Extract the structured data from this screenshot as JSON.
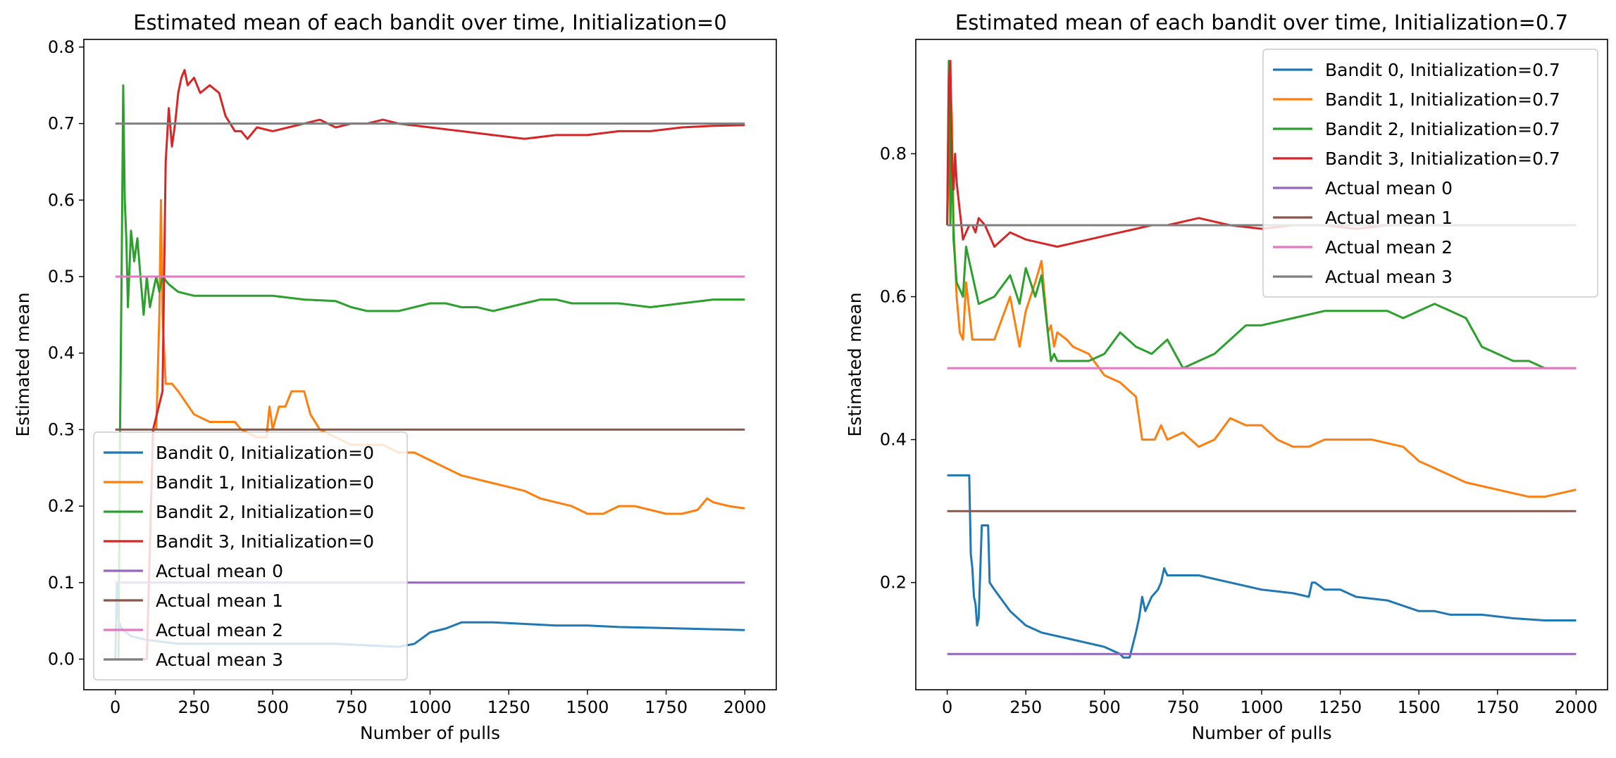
{
  "chart_data": [
    {
      "type": "line",
      "title": "Estimated mean of each bandit over time, Initialization=0",
      "xlabel": "Number of pulls",
      "ylabel": "Estimated mean",
      "xlim": [
        -100,
        2100
      ],
      "ylim": [
        -0.04,
        0.81
      ],
      "xticks": [
        0,
        250,
        500,
        750,
        1000,
        1250,
        1500,
        1750,
        2000
      ],
      "xtick_labels": [
        "0",
        "250",
        "500",
        "750",
        "1000",
        "1250",
        "1500",
        "1750",
        "2000"
      ],
      "yticks": [
        0.0,
        0.1,
        0.2,
        0.3,
        0.4,
        0.5,
        0.6,
        0.7,
        0.8
      ],
      "ytick_labels": [
        "0.0",
        "0.1",
        "0.2",
        "0.3",
        "0.4",
        "0.5",
        "0.6",
        "0.7",
        "0.8"
      ],
      "grid": false,
      "legend_position": "lower-left",
      "series": [
        {
          "name": "Bandit 0, Initialization=0",
          "color": "#1f77b4",
          "x": [
            0,
            5,
            10,
            20,
            50,
            100,
            200,
            300,
            500,
            700,
            800,
            900,
            950,
            1000,
            1050,
            1100,
            1200,
            1300,
            1400,
            1500,
            1600,
            1700,
            1800,
            1900,
            2000
          ],
          "y": [
            0.0,
            0.1,
            0.05,
            0.04,
            0.03,
            0.025,
            0.02,
            0.02,
            0.02,
            0.02,
            0.018,
            0.016,
            0.02,
            0.035,
            0.04,
            0.048,
            0.048,
            0.046,
            0.044,
            0.044,
            0.042,
            0.041,
            0.04,
            0.039,
            0.038
          ]
        },
        {
          "name": "Bandit 1, Initialization=0",
          "color": "#ff7f0e",
          "x": [
            0,
            100,
            120,
            130,
            140,
            145,
            150,
            160,
            180,
            200,
            250,
            300,
            380,
            400,
            450,
            480,
            490,
            500,
            520,
            540,
            560,
            580,
            600,
            620,
            650,
            700,
            750,
            800,
            850,
            900,
            950,
            1000,
            1050,
            1100,
            1150,
            1200,
            1250,
            1300,
            1350,
            1400,
            1450,
            1500,
            1550,
            1600,
            1650,
            1700,
            1750,
            1800,
            1850,
            1880,
            1900,
            1950,
            2000
          ],
          "y": [
            0.0,
            0.0,
            0.3,
            0.3,
            0.45,
            0.6,
            0.45,
            0.36,
            0.36,
            0.35,
            0.32,
            0.31,
            0.31,
            0.3,
            0.29,
            0.29,
            0.33,
            0.3,
            0.33,
            0.33,
            0.35,
            0.35,
            0.35,
            0.32,
            0.3,
            0.29,
            0.28,
            0.28,
            0.28,
            0.27,
            0.27,
            0.26,
            0.25,
            0.24,
            0.235,
            0.23,
            0.225,
            0.22,
            0.21,
            0.205,
            0.2,
            0.19,
            0.19,
            0.2,
            0.2,
            0.195,
            0.19,
            0.19,
            0.195,
            0.21,
            0.205,
            0.2,
            0.197
          ]
        },
        {
          "name": "Bandit 2, Initialization=0",
          "color": "#2ca02c",
          "x": [
            0,
            10,
            15,
            20,
            25,
            30,
            35,
            40,
            50,
            60,
            70,
            80,
            90,
            100,
            110,
            120,
            130,
            140,
            150,
            170,
            200,
            250,
            300,
            400,
            500,
            600,
            700,
            750,
            800,
            900,
            1000,
            1050,
            1100,
            1150,
            1200,
            1250,
            1300,
            1350,
            1400,
            1450,
            1500,
            1600,
            1700,
            1800,
            1900,
            1950,
            2000
          ],
          "y": [
            0.0,
            0.0,
            0.3,
            0.5,
            0.75,
            0.6,
            0.55,
            0.46,
            0.56,
            0.52,
            0.55,
            0.5,
            0.45,
            0.5,
            0.46,
            0.48,
            0.5,
            0.48,
            0.5,
            0.49,
            0.48,
            0.475,
            0.475,
            0.475,
            0.475,
            0.47,
            0.468,
            0.46,
            0.455,
            0.455,
            0.465,
            0.465,
            0.46,
            0.46,
            0.455,
            0.46,
            0.465,
            0.47,
            0.47,
            0.465,
            0.465,
            0.465,
            0.46,
            0.465,
            0.47,
            0.47,
            0.47
          ]
        },
        {
          "name": "Bandit 3, Initialization=0",
          "color": "#d62728",
          "x": [
            0,
            100,
            120,
            150,
            160,
            170,
            180,
            190,
            200,
            210,
            220,
            230,
            250,
            270,
            300,
            330,
            350,
            380,
            400,
            420,
            450,
            500,
            550,
            600,
            650,
            700,
            750,
            800,
            850,
            900,
            1000,
            1100,
            1200,
            1300,
            1400,
            1500,
            1600,
            1700,
            1800,
            1900,
            2000
          ],
          "y": [
            0.0,
            0.0,
            0.3,
            0.35,
            0.65,
            0.72,
            0.67,
            0.7,
            0.74,
            0.76,
            0.77,
            0.75,
            0.76,
            0.74,
            0.75,
            0.74,
            0.71,
            0.69,
            0.69,
            0.68,
            0.695,
            0.69,
            0.695,
            0.7,
            0.705,
            0.695,
            0.7,
            0.7,
            0.705,
            0.7,
            0.695,
            0.69,
            0.685,
            0.68,
            0.685,
            0.685,
            0.69,
            0.69,
            0.695,
            0.697,
            0.698
          ]
        },
        {
          "name": "Actual mean 0",
          "color": "#9467bd",
          "x": [
            0,
            2000
          ],
          "y": [
            0.1,
            0.1
          ]
        },
        {
          "name": "Actual mean 1",
          "color": "#8c564b",
          "x": [
            0,
            2000
          ],
          "y": [
            0.3,
            0.3
          ]
        },
        {
          "name": "Actual mean 2",
          "color": "#e377c2",
          "x": [
            0,
            2000
          ],
          "y": [
            0.5,
            0.5
          ]
        },
        {
          "name": "Actual mean 3",
          "color": "#7f7f7f",
          "x": [
            0,
            2000
          ],
          "y": [
            0.7,
            0.7
          ]
        }
      ]
    },
    {
      "type": "line",
      "title": "Estimated mean of each bandit over time, Initialization=0.7",
      "xlabel": "Number of pulls",
      "ylabel": "Estimated mean",
      "xlim": [
        -100,
        2100
      ],
      "ylim": [
        0.05,
        0.96
      ],
      "xticks": [
        0,
        250,
        500,
        750,
        1000,
        1250,
        1500,
        1750,
        2000
      ],
      "xtick_labels": [
        "0",
        "250",
        "500",
        "750",
        "1000",
        "1250",
        "1500",
        "1750",
        "2000"
      ],
      "yticks": [
        0.2,
        0.4,
        0.6,
        0.8
      ],
      "ytick_labels": [
        "0.2",
        "0.4",
        "0.6",
        "0.8"
      ],
      "grid": false,
      "legend_position": "upper-right",
      "series": [
        {
          "name": "Bandit 0, Initialization=0.7",
          "color": "#1f77b4",
          "x": [
            0,
            70,
            75,
            80,
            85,
            90,
            95,
            100,
            110,
            120,
            130,
            135,
            150,
            200,
            250,
            300,
            400,
            500,
            550,
            560,
            580,
            600,
            610,
            620,
            630,
            650,
            670,
            680,
            690,
            700,
            750,
            800,
            900,
            1000,
            1100,
            1150,
            1160,
            1170,
            1200,
            1250,
            1300,
            1400,
            1500,
            1550,
            1600,
            1700,
            1800,
            1900,
            2000
          ],
          "y": [
            0.35,
            0.35,
            0.24,
            0.22,
            0.18,
            0.17,
            0.14,
            0.15,
            0.28,
            0.28,
            0.28,
            0.2,
            0.19,
            0.16,
            0.14,
            0.13,
            0.12,
            0.11,
            0.1,
            0.095,
            0.095,
            0.13,
            0.15,
            0.18,
            0.16,
            0.18,
            0.19,
            0.2,
            0.22,
            0.21,
            0.21,
            0.21,
            0.2,
            0.19,
            0.185,
            0.18,
            0.2,
            0.2,
            0.19,
            0.19,
            0.18,
            0.175,
            0.16,
            0.16,
            0.155,
            0.155,
            0.15,
            0.147,
            0.147
          ]
        },
        {
          "name": "Bandit 1, Initialization=0.7",
          "color": "#ff7f0e",
          "x": [
            0,
            5,
            10,
            15,
            20,
            25,
            30,
            40,
            50,
            60,
            80,
            100,
            150,
            200,
            230,
            250,
            280,
            300,
            310,
            320,
            330,
            340,
            350,
            380,
            400,
            450,
            500,
            550,
            600,
            620,
            640,
            660,
            680,
            700,
            750,
            800,
            850,
            900,
            950,
            1000,
            1050,
            1100,
            1150,
            1200,
            1250,
            1300,
            1350,
            1400,
            1450,
            1500,
            1550,
            1600,
            1650,
            1700,
            1750,
            1800,
            1850,
            1900,
            1950,
            2000
          ],
          "y": [
            0.7,
            0.8,
            0.9,
            0.85,
            0.7,
            0.65,
            0.6,
            0.55,
            0.54,
            0.62,
            0.54,
            0.54,
            0.54,
            0.6,
            0.53,
            0.58,
            0.62,
            0.65,
            0.6,
            0.55,
            0.56,
            0.53,
            0.55,
            0.54,
            0.53,
            0.52,
            0.49,
            0.48,
            0.46,
            0.4,
            0.4,
            0.4,
            0.42,
            0.4,
            0.41,
            0.39,
            0.4,
            0.43,
            0.42,
            0.42,
            0.4,
            0.39,
            0.39,
            0.4,
            0.4,
            0.4,
            0.4,
            0.395,
            0.39,
            0.37,
            0.36,
            0.35,
            0.34,
            0.335,
            0.33,
            0.325,
            0.32,
            0.32,
            0.325,
            0.33
          ]
        },
        {
          "name": "Bandit 2, Initialization=0.7",
          "color": "#2ca02c",
          "x": [
            0,
            5,
            10,
            15,
            20,
            30,
            50,
            60,
            80,
            100,
            150,
            200,
            230,
            250,
            280,
            300,
            320,
            330,
            340,
            350,
            400,
            450,
            500,
            550,
            600,
            650,
            700,
            750,
            800,
            850,
            900,
            950,
            1000,
            1100,
            1200,
            1300,
            1400,
            1450,
            1500,
            1550,
            1600,
            1650,
            1700,
            1750,
            1800,
            1850,
            1900,
            1950,
            2000
          ],
          "y": [
            0.7,
            0.93,
            0.7,
            0.82,
            0.68,
            0.62,
            0.6,
            0.67,
            0.63,
            0.59,
            0.6,
            0.63,
            0.59,
            0.64,
            0.6,
            0.63,
            0.55,
            0.51,
            0.52,
            0.51,
            0.51,
            0.51,
            0.52,
            0.55,
            0.53,
            0.52,
            0.54,
            0.5,
            0.51,
            0.52,
            0.54,
            0.56,
            0.56,
            0.57,
            0.58,
            0.58,
            0.58,
            0.57,
            0.58,
            0.59,
            0.58,
            0.57,
            0.53,
            0.52,
            0.51,
            0.51,
            0.5,
            0.5,
            0.5
          ]
        },
        {
          "name": "Bandit 3, Initialization=0.7",
          "color": "#d62728",
          "x": [
            0,
            5,
            10,
            15,
            20,
            25,
            30,
            40,
            50,
            60,
            70,
            80,
            90,
            100,
            120,
            150,
            200,
            250,
            300,
            350,
            400,
            450,
            500,
            550,
            600,
            650,
            700,
            750,
            800,
            850,
            900,
            1000,
            1100,
            1200,
            1300,
            1400,
            1500,
            1600,
            1700,
            1800,
            1900,
            2000
          ],
          "y": [
            0.7,
            0.9,
            0.93,
            0.78,
            0.75,
            0.8,
            0.76,
            0.72,
            0.68,
            0.69,
            0.7,
            0.7,
            0.69,
            0.71,
            0.7,
            0.67,
            0.69,
            0.68,
            0.675,
            0.67,
            0.675,
            0.68,
            0.685,
            0.69,
            0.695,
            0.7,
            0.7,
            0.705,
            0.71,
            0.705,
            0.7,
            0.695,
            0.7,
            0.7,
            0.695,
            0.7,
            0.7,
            0.7,
            0.7,
            0.7,
            0.7,
            0.7
          ]
        },
        {
          "name": "Actual mean 0",
          "color": "#9467bd",
          "x": [
            0,
            2000
          ],
          "y": [
            0.1,
            0.1
          ]
        },
        {
          "name": "Actual mean 1",
          "color": "#8c564b",
          "x": [
            0,
            2000
          ],
          "y": [
            0.3,
            0.3
          ]
        },
        {
          "name": "Actual mean 2",
          "color": "#e377c2",
          "x": [
            0,
            2000
          ],
          "y": [
            0.5,
            0.5
          ]
        },
        {
          "name": "Actual mean 3",
          "color": "#7f7f7f",
          "x": [
            0,
            2000
          ],
          "y": [
            0.7,
            0.7
          ]
        }
      ]
    }
  ]
}
